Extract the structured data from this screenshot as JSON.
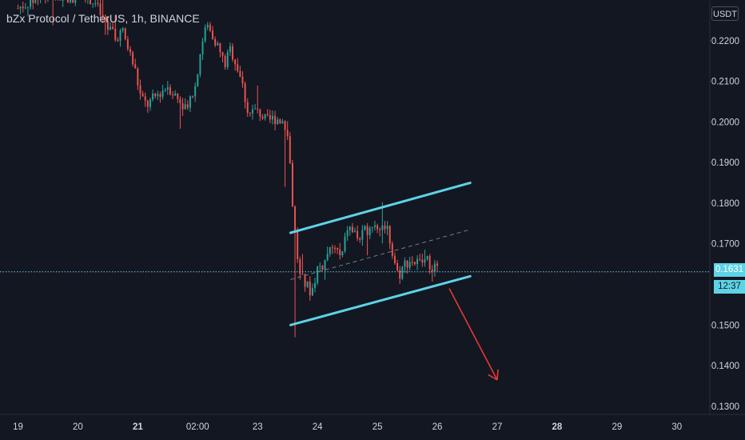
{
  "header": {
    "title": "bZx Protocol / TetherUS, 1h, BINANCE"
  },
  "price_axis": {
    "currency": "USDT",
    "ticks": [
      "0.2200",
      "0.2100",
      "0.2000",
      "0.1900",
      "0.1800",
      "0.1700",
      "0.1500",
      "0.1400",
      "0.1300"
    ]
  },
  "time_axis": {
    "ticks": [
      {
        "label": "19",
        "bold": false
      },
      {
        "label": "20",
        "bold": false
      },
      {
        "label": "21",
        "bold": true
      },
      {
        "label": "02:00",
        "bold": false
      },
      {
        "label": "23",
        "bold": false
      },
      {
        "label": "24",
        "bold": false
      },
      {
        "label": "25",
        "bold": false
      },
      {
        "label": "26",
        "bold": false
      },
      {
        "label": "27",
        "bold": false
      },
      {
        "label": "28",
        "bold": true
      },
      {
        "label": "29",
        "bold": false
      },
      {
        "label": "30",
        "bold": false
      }
    ]
  },
  "last_price": {
    "value": "0.1631",
    "countdown": "12:37"
  },
  "colors": {
    "background": "#131722",
    "up": "#26a69a",
    "down": "#ef5350",
    "channel": "#5ed3e6",
    "arrow": "#e53935"
  },
  "chart_data": {
    "type": "candlestick",
    "title": "bZx Protocol / TetherUS, 1h, BINANCE",
    "ylim": [
      0.128,
      0.23
    ],
    "x_domain_days": [
      18.7,
      30.55
    ],
    "close_path": [
      [
        19.0,
        0.228
      ],
      [
        19.5,
        0.232
      ],
      [
        19.8,
        0.23
      ],
      [
        20.1,
        0.232
      ],
      [
        20.3,
        0.229
      ],
      [
        20.45,
        0.224
      ],
      [
        20.6,
        0.221
      ],
      [
        20.75,
        0.222
      ],
      [
        20.95,
        0.213
      ],
      [
        21.05,
        0.206
      ],
      [
        21.15,
        0.204
      ],
      [
        21.35,
        0.207
      ],
      [
        21.5,
        0.209
      ],
      [
        21.65,
        0.206
      ],
      [
        21.8,
        0.204
      ],
      [
        21.95,
        0.208
      ],
      [
        22.05,
        0.218
      ],
      [
        22.15,
        0.224
      ],
      [
        22.3,
        0.22
      ],
      [
        22.45,
        0.214
      ],
      [
        22.55,
        0.218
      ],
      [
        22.7,
        0.212
      ],
      [
        22.85,
        0.202
      ],
      [
        23.0,
        0.203
      ],
      [
        23.15,
        0.2
      ],
      [
        23.3,
        0.201
      ],
      [
        23.45,
        0.2
      ],
      [
        23.52,
        0.195
      ],
      [
        23.6,
        0.176
      ],
      [
        23.7,
        0.162
      ],
      [
        23.8,
        0.16
      ],
      [
        23.9,
        0.158
      ],
      [
        24.0,
        0.164
      ],
      [
        24.1,
        0.165
      ],
      [
        24.2,
        0.168
      ],
      [
        24.3,
        0.169
      ],
      [
        24.4,
        0.166
      ],
      [
        24.5,
        0.174
      ],
      [
        24.6,
        0.173
      ],
      [
        24.7,
        0.171
      ],
      [
        24.8,
        0.173
      ],
      [
        24.9,
        0.175
      ],
      [
        25.0,
        0.174
      ],
      [
        25.15,
        0.175
      ],
      [
        25.25,
        0.168
      ],
      [
        25.35,
        0.162
      ],
      [
        25.45,
        0.165
      ],
      [
        25.55,
        0.166
      ],
      [
        25.7,
        0.165
      ],
      [
        25.8,
        0.166
      ],
      [
        25.9,
        0.165
      ],
      [
        26.0,
        0.163
      ]
    ],
    "annotations": {
      "channel_upper": [
        [
          23.55,
          0.1727
        ],
        [
          26.55,
          0.185
        ]
      ],
      "channel_lower": [
        [
          23.55,
          0.15
        ],
        [
          26.55,
          0.162
        ]
      ],
      "channel_mid": [
        [
          23.55,
          0.1612
        ],
        [
          26.55,
          0.1735
        ]
      ],
      "arrow": [
        [
          26.2,
          0.159
        ],
        [
          27.0,
          0.1365
        ]
      ]
    }
  }
}
